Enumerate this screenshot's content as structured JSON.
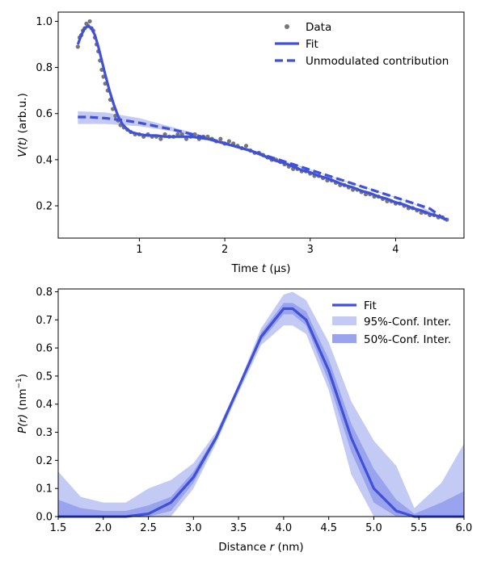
{
  "chart_data": [
    {
      "type": "line",
      "xlabel_prefix": "Time ",
      "xlabel_var": "t",
      "xlabel_suffix": " (μs)",
      "ylabel_var": "V(t)",
      "ylabel_suffix": " (arb.u.)",
      "xlim": [
        0.05,
        4.8
      ],
      "ylim": [
        0.06,
        1.04
      ],
      "xticks": [
        1,
        2,
        3,
        4
      ],
      "yticks": [
        0.2,
        0.4,
        0.6,
        0.8,
        1.0
      ],
      "xtick_labels": [
        "1",
        "2",
        "3",
        "4"
      ],
      "ytick_labels": [
        "0.2",
        "0.4",
        "0.6",
        "0.8",
        "1.0"
      ],
      "legend": [
        "Data",
        "Fit",
        "Unmodulated contribution"
      ],
      "legend_position": "top-right",
      "colors": {
        "data": "#777777",
        "fit": "#3f51d9",
        "band": "#c3caf4"
      },
      "series": [
        {
          "name": "Data",
          "style": "scatter",
          "x": [
            0.28,
            0.3,
            0.32,
            0.34,
            0.36,
            0.38,
            0.4,
            0.42,
            0.44,
            0.46,
            0.48,
            0.5,
            0.52,
            0.54,
            0.56,
            0.58,
            0.6,
            0.63,
            0.66,
            0.69,
            0.72,
            0.75,
            0.78,
            0.82,
            0.86,
            0.9,
            0.95,
            1.0,
            1.05,
            1.1,
            1.15,
            1.2,
            1.25,
            1.3,
            1.35,
            1.4,
            1.45,
            1.5,
            1.55,
            1.6,
            1.65,
            1.7,
            1.75,
            1.8,
            1.85,
            1.9,
            1.95,
            2.0,
            2.05,
            2.1,
            2.15,
            2.2,
            2.25,
            2.3,
            2.35,
            2.4,
            2.45,
            2.5,
            2.55,
            2.6,
            2.65,
            2.7,
            2.75,
            2.8,
            2.85,
            2.9,
            2.95,
            3.0,
            3.05,
            3.1,
            3.15,
            3.2,
            3.25,
            3.3,
            3.35,
            3.4,
            3.45,
            3.5,
            3.55,
            3.6,
            3.65,
            3.7,
            3.75,
            3.8,
            3.85,
            3.9,
            3.95,
            4.0,
            4.05,
            4.1,
            4.15,
            4.2,
            4.25,
            4.3,
            4.35,
            4.4,
            4.45,
            4.5,
            4.55,
            4.6
          ],
          "y": [
            0.89,
            0.93,
            0.94,
            0.96,
            0.97,
            0.99,
            0.98,
            1.0,
            0.97,
            0.96,
            0.93,
            0.9,
            0.87,
            0.83,
            0.79,
            0.76,
            0.73,
            0.7,
            0.66,
            0.62,
            0.59,
            0.57,
            0.55,
            0.54,
            0.53,
            0.52,
            0.51,
            0.51,
            0.5,
            0.51,
            0.5,
            0.5,
            0.49,
            0.51,
            0.5,
            0.5,
            0.51,
            0.51,
            0.49,
            0.5,
            0.51,
            0.49,
            0.5,
            0.5,
            0.49,
            0.48,
            0.49,
            0.47,
            0.48,
            0.47,
            0.46,
            0.45,
            0.46,
            0.44,
            0.43,
            0.43,
            0.42,
            0.41,
            0.4,
            0.4,
            0.39,
            0.38,
            0.37,
            0.36,
            0.36,
            0.35,
            0.35,
            0.34,
            0.33,
            0.33,
            0.32,
            0.31,
            0.31,
            0.3,
            0.29,
            0.29,
            0.28,
            0.27,
            0.27,
            0.26,
            0.25,
            0.25,
            0.24,
            0.24,
            0.23,
            0.22,
            0.22,
            0.21,
            0.21,
            0.2,
            0.19,
            0.19,
            0.18,
            0.17,
            0.17,
            0.16,
            0.16,
            0.15,
            0.15,
            0.14
          ]
        },
        {
          "name": "Fit",
          "style": "line",
          "x": [
            0.28,
            0.32,
            0.36,
            0.4,
            0.44,
            0.48,
            0.52,
            0.56,
            0.6,
            0.65,
            0.7,
            0.75,
            0.8,
            0.85,
            0.9,
            1.0,
            1.1,
            1.2,
            1.3,
            1.4,
            1.5,
            1.6,
            1.7,
            1.8,
            1.9,
            2.0,
            2.1,
            2.2,
            2.3,
            2.4,
            2.5,
            2.6,
            2.7,
            2.8,
            2.9,
            3.0,
            3.1,
            3.2,
            3.3,
            3.4,
            3.5,
            3.6,
            3.7,
            3.8,
            3.9,
            4.0,
            4.1,
            4.2,
            4.3,
            4.4,
            4.5,
            4.6
          ],
          "y": [
            0.9,
            0.94,
            0.97,
            0.98,
            0.97,
            0.94,
            0.89,
            0.83,
            0.77,
            0.7,
            0.64,
            0.59,
            0.555,
            0.535,
            0.52,
            0.51,
            0.505,
            0.505,
            0.5,
            0.5,
            0.5,
            0.5,
            0.495,
            0.49,
            0.48,
            0.47,
            0.46,
            0.45,
            0.44,
            0.425,
            0.41,
            0.395,
            0.385,
            0.37,
            0.355,
            0.345,
            0.33,
            0.32,
            0.305,
            0.29,
            0.28,
            0.265,
            0.255,
            0.24,
            0.23,
            0.215,
            0.205,
            0.19,
            0.18,
            0.165,
            0.155,
            0.14
          ]
        },
        {
          "name": "Unmodulated contribution",
          "style": "dashed",
          "x": [
            0.28,
            0.4,
            0.6,
            0.8,
            1.0,
            1.2,
            1.4,
            1.6,
            1.8,
            2.0,
            2.2,
            2.4,
            2.6,
            2.8,
            3.0,
            3.2,
            3.4,
            3.6,
            3.8,
            4.0,
            4.2,
            4.4,
            4.6
          ],
          "y": [
            0.585,
            0.585,
            0.58,
            0.572,
            0.56,
            0.545,
            0.53,
            0.512,
            0.493,
            0.472,
            0.45,
            0.427,
            0.404,
            0.38,
            0.356,
            0.332,
            0.308,
            0.284,
            0.26,
            0.236,
            0.212,
            0.188,
            0.135
          ],
          "band_x": [
            0.28,
            0.6,
            1.0,
            1.4,
            1.8,
            2.2,
            2.6,
            3.0,
            3.4,
            3.8,
            4.2,
            4.6
          ],
          "band_lower": [
            0.555,
            0.555,
            0.545,
            0.522,
            0.487,
            0.446,
            0.401,
            0.354,
            0.306,
            0.258,
            0.21,
            0.13
          ],
          "band_upper": [
            0.61,
            0.605,
            0.58,
            0.54,
            0.499,
            0.454,
            0.407,
            0.358,
            0.31,
            0.262,
            0.214,
            0.14
          ]
        }
      ]
    },
    {
      "type": "line",
      "xlabel_prefix": "Distance ",
      "xlabel_var": "r",
      "xlabel_suffix": " (nm)",
      "ylabel_var": "P(r)",
      "ylabel_suffix": " (nm",
      "ylabel_sup": "−1",
      "ylabel_close": ")",
      "xlim": [
        1.5,
        6.0
      ],
      "ylim": [
        0.0,
        0.81
      ],
      "xticks": [
        1.5,
        2.0,
        2.5,
        3.0,
        3.5,
        4.0,
        4.5,
        5.0,
        5.5,
        6.0
      ],
      "yticks": [
        0.0,
        0.1,
        0.2,
        0.3,
        0.4,
        0.5,
        0.6,
        0.7,
        0.8
      ],
      "xtick_labels": [
        "1.5",
        "2.0",
        "2.5",
        "3.0",
        "3.5",
        "4.0",
        "4.5",
        "5.0",
        "5.5",
        "6.0"
      ],
      "ytick_labels": [
        "0.0",
        "0.1",
        "0.2",
        "0.3",
        "0.4",
        "0.5",
        "0.6",
        "0.7",
        "0.8"
      ],
      "legend": [
        "Fit",
        "95%-Conf. Inter.",
        "50%-Conf. Inter."
      ],
      "legend_position": "top-right",
      "colors": {
        "fit": "#3f51d9",
        "ci95": "#c3caf4",
        "ci50": "#9aa3ee"
      },
      "x": [
        1.5,
        1.75,
        2.0,
        2.25,
        2.5,
        2.75,
        3.0,
        3.25,
        3.5,
        3.75,
        4.0,
        4.1,
        4.25,
        4.5,
        4.75,
        5.0,
        5.25,
        5.45,
        5.75,
        6.0
      ],
      "fit": [
        0.0,
        0.0,
        0.0,
        0.0,
        0.01,
        0.05,
        0.14,
        0.28,
        0.46,
        0.64,
        0.74,
        0.74,
        0.7,
        0.52,
        0.28,
        0.1,
        0.02,
        0.0,
        0.0,
        0.0
      ],
      "ci95_upper": [
        0.16,
        0.07,
        0.05,
        0.05,
        0.1,
        0.13,
        0.19,
        0.3,
        0.47,
        0.67,
        0.79,
        0.8,
        0.77,
        0.62,
        0.41,
        0.27,
        0.18,
        0.03,
        0.12,
        0.26
      ],
      "ci95_lower": [
        0.0,
        0.0,
        0.0,
        0.0,
        0.0,
        0.0,
        0.1,
        0.26,
        0.44,
        0.61,
        0.68,
        0.68,
        0.65,
        0.45,
        0.15,
        0.0,
        0.0,
        0.0,
        0.0,
        0.0
      ],
      "ci50_upper": [
        0.06,
        0.03,
        0.02,
        0.02,
        0.04,
        0.07,
        0.16,
        0.29,
        0.465,
        0.655,
        0.76,
        0.76,
        0.73,
        0.56,
        0.33,
        0.17,
        0.06,
        0.01,
        0.05,
        0.09
      ],
      "ci50_lower": [
        0.0,
        0.0,
        0.0,
        0.0,
        0.0,
        0.02,
        0.12,
        0.27,
        0.45,
        0.625,
        0.72,
        0.72,
        0.68,
        0.48,
        0.23,
        0.05,
        0.0,
        0.0,
        0.0,
        0.0
      ]
    }
  ]
}
